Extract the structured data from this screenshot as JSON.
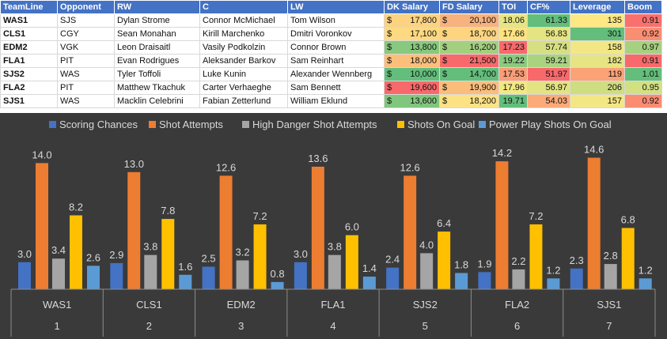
{
  "table": {
    "columns": [
      "TeamLine",
      "Opponent",
      "RW",
      "C",
      "LW",
      "DK Salary",
      "FD Salary",
      "TOI",
      "CF%",
      "Leverage",
      "Boom"
    ],
    "currency_symbol": "$",
    "rows": [
      {
        "teamline": "WAS1",
        "opponent": "SJS",
        "rw": "Dylan Strome",
        "c": "Connor McMichael",
        "lw": "Tom Wilson",
        "dk": "17,800",
        "fd": "20,100",
        "toi": "18.06",
        "cf": "61.33",
        "leverage": "135",
        "boom": "0.91",
        "colors": {
          "dk": "#fcd381",
          "fd": "#f8b27d",
          "toi": "#e7e583",
          "cf": "#63be7b",
          "leverage": "#fee883",
          "boom": "#f9706d"
        }
      },
      {
        "teamline": "CLS1",
        "opponent": "CGY",
        "rw": "Sean Monahan",
        "c": "Kirill Marchenko",
        "lw": "Dmitri Voronkov",
        "dk": "17,100",
        "fd": "18,700",
        "toi": "17.66",
        "cf": "56.83",
        "leverage": "301",
        "boom": "0.92",
        "colors": {
          "dk": "#fdd982",
          "fd": "#fdd581",
          "toi": "#fde382",
          "cf": "#e5e483",
          "leverage": "#63be7b",
          "boom": "#fa8e73"
        }
      },
      {
        "teamline": "EDM2",
        "opponent": "VGK",
        "rw": "Leon Draisaitl",
        "c": "Vasily Podkolzin",
        "lw": "Connor Brown",
        "dk": "13,800",
        "fd": "16,200",
        "toi": "17.23",
        "cf": "57.74",
        "leverage": "158",
        "boom": "0.97",
        "colors": {
          "dk": "#87c97e",
          "fd": "#a3d07f",
          "toi": "#f8696b",
          "cf": "#d6df81",
          "leverage": "#f2e784",
          "boom": "#a6d180"
        }
      },
      {
        "teamline": "FLA1",
        "opponent": "PIT",
        "rw": "Evan Rodrigues",
        "c": "Aleksander Barkov",
        "lw": "Sam Reinhart",
        "dk": "18,000",
        "fd": "21,500",
        "toi": "19.22",
        "cf": "59.21",
        "leverage": "182",
        "boom": "0.91",
        "colors": {
          "dk": "#fcbf7b",
          "fd": "#f8696b",
          "toi": "#8bca7e",
          "cf": "#aad380",
          "leverage": "#e7e583",
          "boom": "#f8696b"
        }
      },
      {
        "teamline": "SJS2",
        "opponent": "WAS",
        "rw": "Tyler Toffoli",
        "c": "Luke Kunin",
        "lw": "Alexander Wennberg",
        "dk": "10,000",
        "fd": "14,700",
        "toi": "17.53",
        "cf": "51.97",
        "leverage": "119",
        "boom": "1.01",
        "colors": {
          "dk": "#63be7b",
          "fd": "#63be7b",
          "toi": "#f99e77",
          "cf": "#f8696b",
          "leverage": "#fba276",
          "boom": "#63be7b"
        }
      },
      {
        "teamline": "FLA2",
        "opponent": "PIT",
        "rw": "Matthew Tkachuk",
        "c": "Carter Verhaeghe",
        "lw": "Sam Bennett",
        "dk": "19,600",
        "fd": "19,900",
        "toi": "17.96",
        "cf": "56.97",
        "leverage": "206",
        "boom": "0.95",
        "colors": {
          "dk": "#f8696b",
          "fd": "#fbbd7b",
          "toi": "#f2e884",
          "cf": "#e3e383",
          "leverage": "#cfdd81",
          "boom": "#d3e082"
        }
      },
      {
        "teamline": "SJS1",
        "opponent": "WAS",
        "rw": "Macklin Celebrini",
        "c": "Fabian Zetterlund",
        "lw": "William Eklund",
        "dk": "13,600",
        "fd": "18,200",
        "toi": "19.71",
        "cf": "54.03",
        "leverage": "157",
        "boom": "0.92",
        "colors": {
          "dk": "#80c77d",
          "fd": "#fde283",
          "toi": "#63be7b",
          "cf": "#fbaa78",
          "leverage": "#f3e784",
          "boom": "#fa8c72"
        }
      }
    ]
  },
  "chart_data": {
    "type": "bar",
    "title": "",
    "xlabel": "",
    "ylabel": "",
    "legend_position": "top",
    "grid": false,
    "categories": [
      "WAS1",
      "CLS1",
      "EDM2",
      "FLA1",
      "SJS2",
      "FLA2",
      "SJS1"
    ],
    "category_numbers": [
      "1",
      "2",
      "3",
      "4",
      "5",
      "6",
      "7"
    ],
    "ylim": [
      0,
      16
    ],
    "series": [
      {
        "name": "Scoring Chances",
        "color": "#4472c4",
        "values": [
          3.0,
          2.9,
          2.5,
          3.0,
          2.4,
          1.9,
          2.3
        ],
        "labels": [
          "3.0",
          "2.9",
          "2.5",
          "3.0",
          "2.4",
          "1.9",
          "2.3"
        ]
      },
      {
        "name": "Shot Attempts",
        "color": "#ed7d31",
        "values": [
          14.0,
          13.0,
          12.6,
          13.6,
          12.6,
          14.2,
          14.6
        ],
        "labels": [
          "14.0",
          "13.0",
          "12.6",
          "13.6",
          "12.6",
          "14.2",
          "14.6"
        ]
      },
      {
        "name": "High Danger Shot Attempts",
        "color": "#a5a5a5",
        "values": [
          3.4,
          3.8,
          3.2,
          3.8,
          4.0,
          2.2,
          2.8
        ],
        "labels": [
          "3.4",
          "3.8",
          "3.2",
          "3.8",
          "4.0",
          "2.2",
          "2.8"
        ]
      },
      {
        "name": "Shots On Goal",
        "color": "#ffc000",
        "values": [
          8.2,
          7.8,
          7.2,
          6.0,
          6.4,
          7.2,
          6.8
        ],
        "labels": [
          "8.2",
          "7.8",
          "7.2",
          "6.0",
          "6.4",
          "7.2",
          "6.8"
        ]
      },
      {
        "name": "Power Play Shots On Goal",
        "color": "#5b9bd5",
        "values": [
          2.6,
          1.6,
          0.8,
          1.4,
          1.8,
          1.2,
          1.2
        ],
        "labels": [
          "2.6",
          "1.6",
          "0.8",
          "1.4",
          "1.8",
          "1.2",
          "1.2"
        ]
      }
    ]
  }
}
